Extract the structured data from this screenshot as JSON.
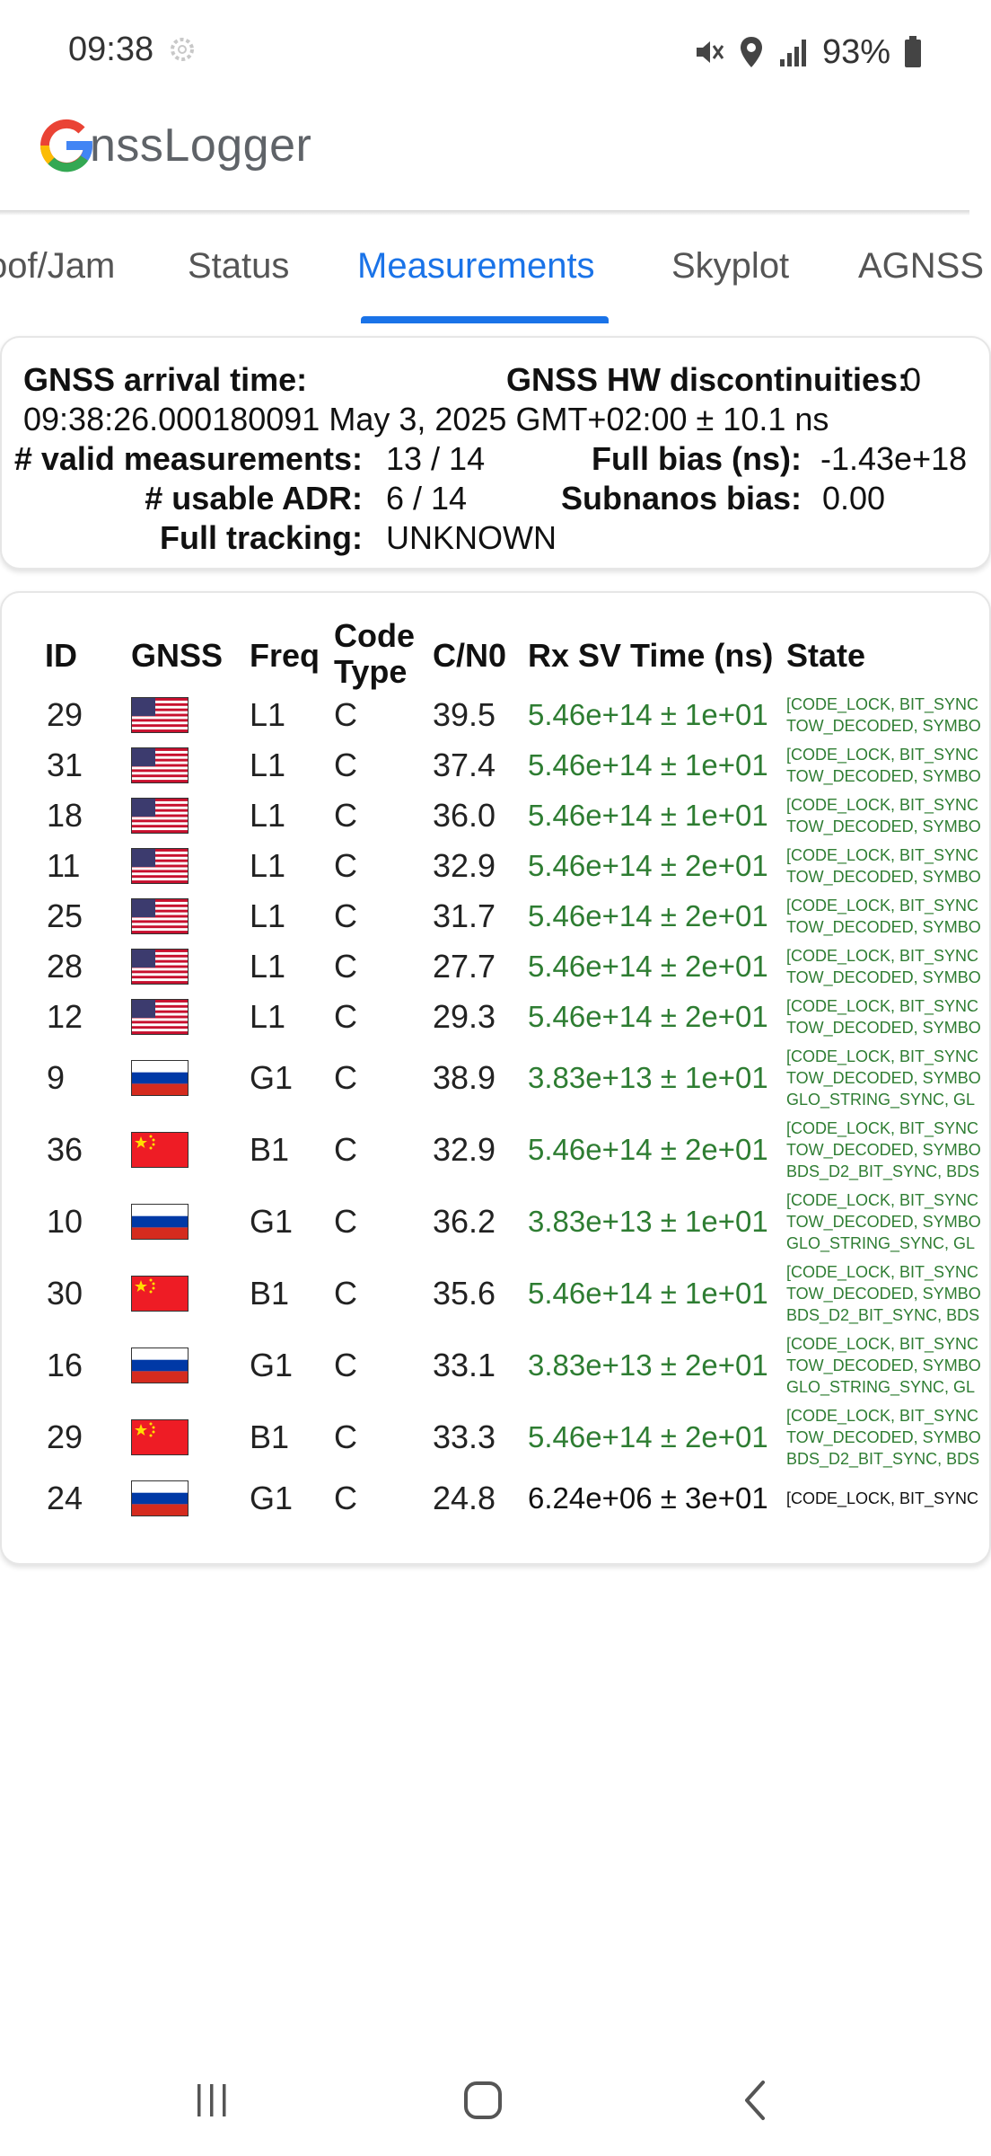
{
  "status_bar": {
    "time": "09:38",
    "battery": "93%"
  },
  "app": {
    "title_rest": "nssLogger",
    "logo_letter": "G"
  },
  "tabs": [
    {
      "label": "oof/Jam",
      "active": false
    },
    {
      "label": "Status",
      "active": false
    },
    {
      "label": "Measurements",
      "active": true
    },
    {
      "label": "Skyplot",
      "active": false
    },
    {
      "label": "AGNSS",
      "active": false
    }
  ],
  "summary": {
    "arrival_label": "GNSS arrival time:",
    "hw_disc_label": "GNSS HW discontinuities:",
    "hw_disc_value": "0",
    "arrival_value": "09:38:26.000180091 May 3, 2025 GMT+02:00 ± 10.1 ns",
    "valid_label": "# valid measurements:",
    "valid_value": "13 / 14",
    "full_bias_label": "Full bias (ns):",
    "full_bias_value": "-1.43e+18",
    "usable_label": "# usable ADR:",
    "usable_value": "6 / 14",
    "subnanos_label": "Subnanos bias:",
    "subnanos_value": "0.00",
    "tracking_label": "Full tracking:",
    "tracking_value": "UNKNOWN"
  },
  "table": {
    "headers": {
      "id": "ID",
      "gnss": "GNSS",
      "freq": "Freq",
      "code_type": "Code Type",
      "cn0": "C/N0",
      "rx": "Rx SV Time (ns)",
      "state": "State"
    },
    "rows": [
      {
        "id": "29",
        "gnss": "us",
        "freq": "L1",
        "code": "C",
        "cn0": "39.5",
        "rx": "5.46e+14 ± 1e+01",
        "state": [
          "[CODE_LOCK, BIT_SYNC",
          "TOW_DECODED, SYMBO"
        ]
      },
      {
        "id": "31",
        "gnss": "us",
        "freq": "L1",
        "code": "C",
        "cn0": "37.4",
        "rx": "5.46e+14 ± 1e+01",
        "state": [
          "[CODE_LOCK, BIT_SYNC",
          "TOW_DECODED, SYMBO"
        ]
      },
      {
        "id": "18",
        "gnss": "us",
        "freq": "L1",
        "code": "C",
        "cn0": "36.0",
        "rx": "5.46e+14 ± 1e+01",
        "state": [
          "[CODE_LOCK, BIT_SYNC",
          "TOW_DECODED, SYMBO"
        ]
      },
      {
        "id": "11",
        "gnss": "us",
        "freq": "L1",
        "code": "C",
        "cn0": "32.9",
        "rx": "5.46e+14 ± 2e+01",
        "state": [
          "[CODE_LOCK, BIT_SYNC",
          "TOW_DECODED, SYMBO"
        ]
      },
      {
        "id": "25",
        "gnss": "us",
        "freq": "L1",
        "code": "C",
        "cn0": "31.7",
        "rx": "5.46e+14 ± 2e+01",
        "state": [
          "[CODE_LOCK, BIT_SYNC",
          "TOW_DECODED, SYMBO"
        ]
      },
      {
        "id": "28",
        "gnss": "us",
        "freq": "L1",
        "code": "C",
        "cn0": "27.7",
        "rx": "5.46e+14 ± 2e+01",
        "state": [
          "[CODE_LOCK, BIT_SYNC",
          "TOW_DECODED, SYMBO"
        ]
      },
      {
        "id": "12",
        "gnss": "us",
        "freq": "L1",
        "code": "C",
        "cn0": "29.3",
        "rx": "5.46e+14 ± 2e+01",
        "state": [
          "[CODE_LOCK, BIT_SYNC",
          "TOW_DECODED, SYMBO"
        ]
      },
      {
        "id": "9",
        "gnss": "ru",
        "freq": "G1",
        "code": "C",
        "cn0": "38.9",
        "rx": "3.83e+13 ± 1e+01",
        "state": [
          "[CODE_LOCK, BIT_SYNC",
          "TOW_DECODED, SYMBO",
          "GLO_STRING_SYNC, GL"
        ]
      },
      {
        "id": "36",
        "gnss": "cn",
        "freq": "B1",
        "code": "C",
        "cn0": "32.9",
        "rx": "5.46e+14 ± 2e+01",
        "state": [
          "[CODE_LOCK, BIT_SYNC",
          "TOW_DECODED, SYMBO",
          "BDS_D2_BIT_SYNC, BDS"
        ]
      },
      {
        "id": "10",
        "gnss": "ru",
        "freq": "G1",
        "code": "C",
        "cn0": "36.2",
        "rx": "3.83e+13 ± 1e+01",
        "state": [
          "[CODE_LOCK, BIT_SYNC",
          "TOW_DECODED, SYMBO",
          "GLO_STRING_SYNC, GL"
        ]
      },
      {
        "id": "30",
        "gnss": "cn",
        "freq": "B1",
        "code": "C",
        "cn0": "35.6",
        "rx": "5.46e+14 ± 1e+01",
        "state": [
          "[CODE_LOCK, BIT_SYNC",
          "TOW_DECODED, SYMBO",
          "BDS_D2_BIT_SYNC, BDS"
        ]
      },
      {
        "id": "16",
        "gnss": "ru",
        "freq": "G1",
        "code": "C",
        "cn0": "33.1",
        "rx": "3.83e+13 ± 2e+01",
        "state": [
          "[CODE_LOCK, BIT_SYNC",
          "TOW_DECODED, SYMBO",
          "GLO_STRING_SYNC, GL"
        ]
      },
      {
        "id": "29",
        "gnss": "cn",
        "freq": "B1",
        "code": "C",
        "cn0": "33.3",
        "rx": "5.46e+14 ± 2e+01",
        "state": [
          "[CODE_LOCK, BIT_SYNC",
          "TOW_DECODED, SYMBO",
          "BDS_D2_BIT_SYNC, BDS"
        ]
      },
      {
        "id": "24",
        "gnss": "ru",
        "freq": "G1",
        "code": "C",
        "cn0": "24.8",
        "rx": "6.24e+06 ± 3e+01",
        "rx_color": "black",
        "state": [
          "[CODE_LOCK, BIT_SYNC"
        ],
        "state_color": "black"
      }
    ]
  },
  "colors": {
    "accent": "#1a73e8",
    "green_text": "#2e7d32"
  },
  "nav": {
    "icons": [
      "recents-icon",
      "home-icon",
      "back-icon"
    ]
  }
}
